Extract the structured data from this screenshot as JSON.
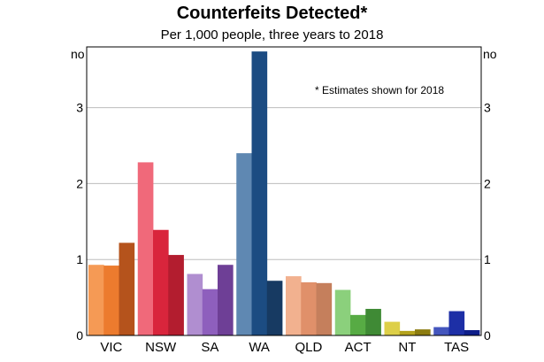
{
  "chart_data": {
    "type": "bar",
    "title": "Counterfeits Detected*",
    "subtitle": "Per 1,000 people, three years to 2018",
    "units_left": "no",
    "units_right": "no",
    "annotation": "* Estimates shown for 2018",
    "ylim": [
      0,
      3.8
    ],
    "yticks": [
      "0",
      "1",
      "2",
      "3"
    ],
    "grid": true,
    "categories": [
      {
        "label": "VIC",
        "values": [
          0.93,
          0.92,
          1.22
        ],
        "colors": [
          "#f59a55",
          "#ec7b2e",
          "#b5531c"
        ]
      },
      {
        "label": "NSW",
        "values": [
          2.28,
          1.39,
          1.06
        ],
        "colors": [
          "#f0697a",
          "#d9253c",
          "#b31d2f"
        ]
      },
      {
        "label": "SA",
        "values": [
          0.81,
          0.61,
          0.93
        ],
        "colors": [
          "#b08ed0",
          "#8e5fbd",
          "#6e3f96"
        ]
      },
      {
        "label": "WA",
        "values": [
          2.4,
          3.74,
          0.72
        ],
        "colors": [
          "#5f88b2",
          "#1c4c82",
          "#173a62"
        ]
      },
      {
        "label": "QLD",
        "values": [
          0.78,
          0.7,
          0.69
        ],
        "colors": [
          "#f2b18f",
          "#e0906a",
          "#c57f5c"
        ]
      },
      {
        "label": "ACT",
        "values": [
          0.6,
          0.27,
          0.35
        ],
        "colors": [
          "#8bd07c",
          "#57ab44",
          "#3f8a35"
        ]
      },
      {
        "label": "NT",
        "values": [
          0.18,
          0.06,
          0.08
        ],
        "colors": [
          "#ddcf48",
          "#b3a21c",
          "#8c7c10"
        ]
      },
      {
        "label": "TAS",
        "values": [
          0.11,
          0.32,
          0.07
        ],
        "colors": [
          "#4456bd",
          "#1d2fa6",
          "#0e1e8a"
        ]
      }
    ]
  }
}
